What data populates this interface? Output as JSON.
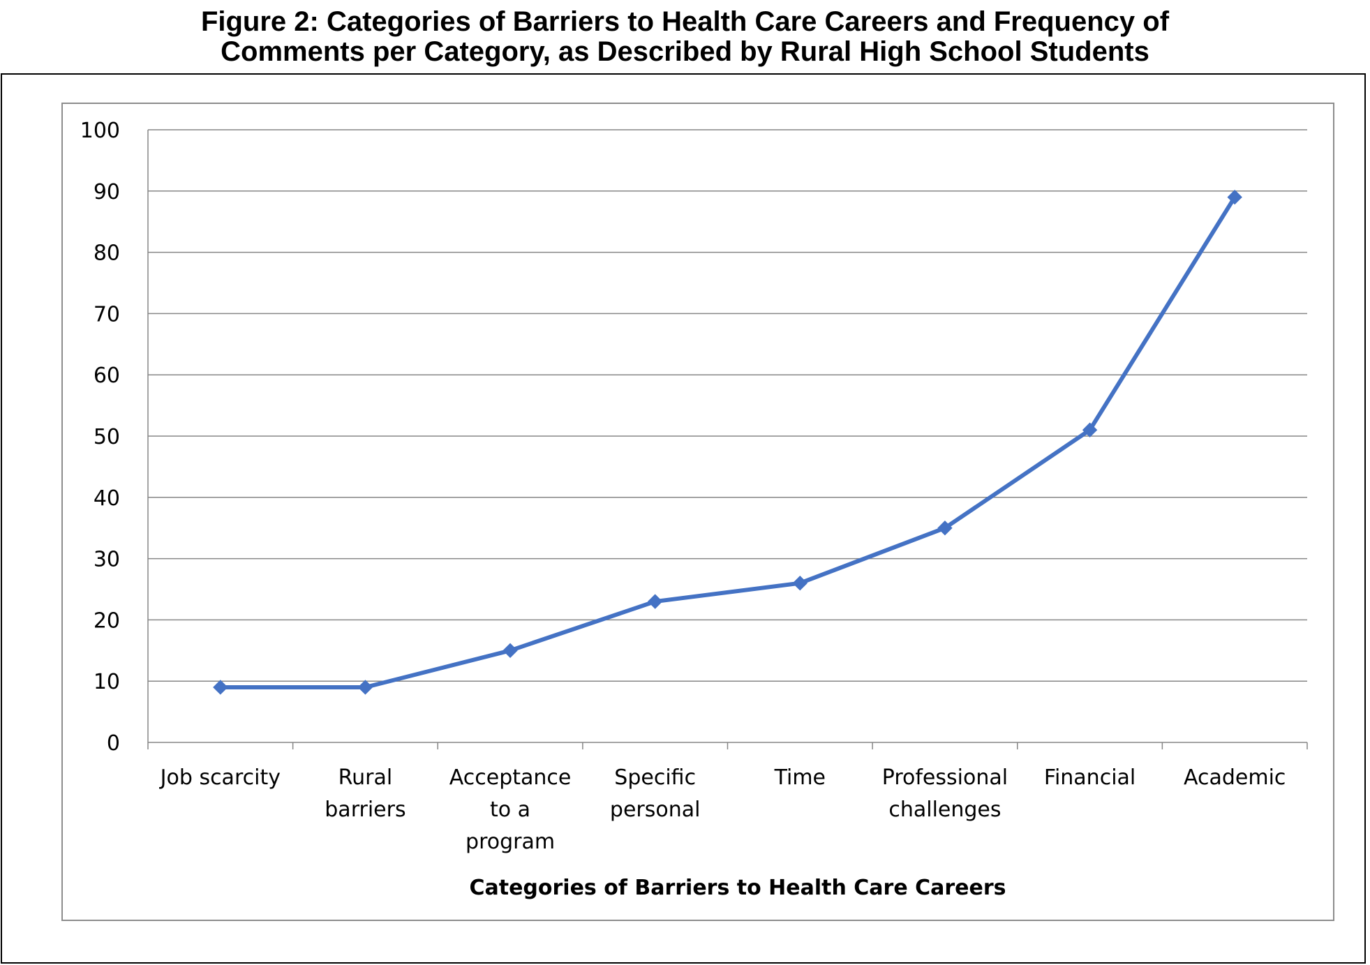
{
  "figure": {
    "title_line1": "Figure 2: Categories of Barriers to Health Care Careers and Frequency of",
    "title_line2": "Comments per Category, as Described by Rural High School Students"
  },
  "chart_data": {
    "type": "line",
    "categories": [
      [
        "Job scarcity"
      ],
      [
        "Rural",
        "barriers"
      ],
      [
        "Acceptance",
        "to a",
        "program"
      ],
      [
        "Specific",
        "personal"
      ],
      [
        "Time"
      ],
      [
        "Professional",
        "challenges"
      ],
      [
        "Financial"
      ],
      [
        "Academic"
      ]
    ],
    "series": [
      {
        "values": [
          9,
          9,
          15,
          23,
          26,
          35,
          51,
          89
        ],
        "color": "#4472C4",
        "marker": "diamond"
      }
    ],
    "xlabel": "Categories of Barriers to Health Care Careers",
    "ylabel": "",
    "ylim": [
      0,
      100
    ],
    "yticks": [
      0,
      10,
      20,
      30,
      40,
      50,
      60,
      70,
      80,
      90,
      100
    ],
    "grid": true,
    "gridline_color": "#868686",
    "legend": "none"
  }
}
